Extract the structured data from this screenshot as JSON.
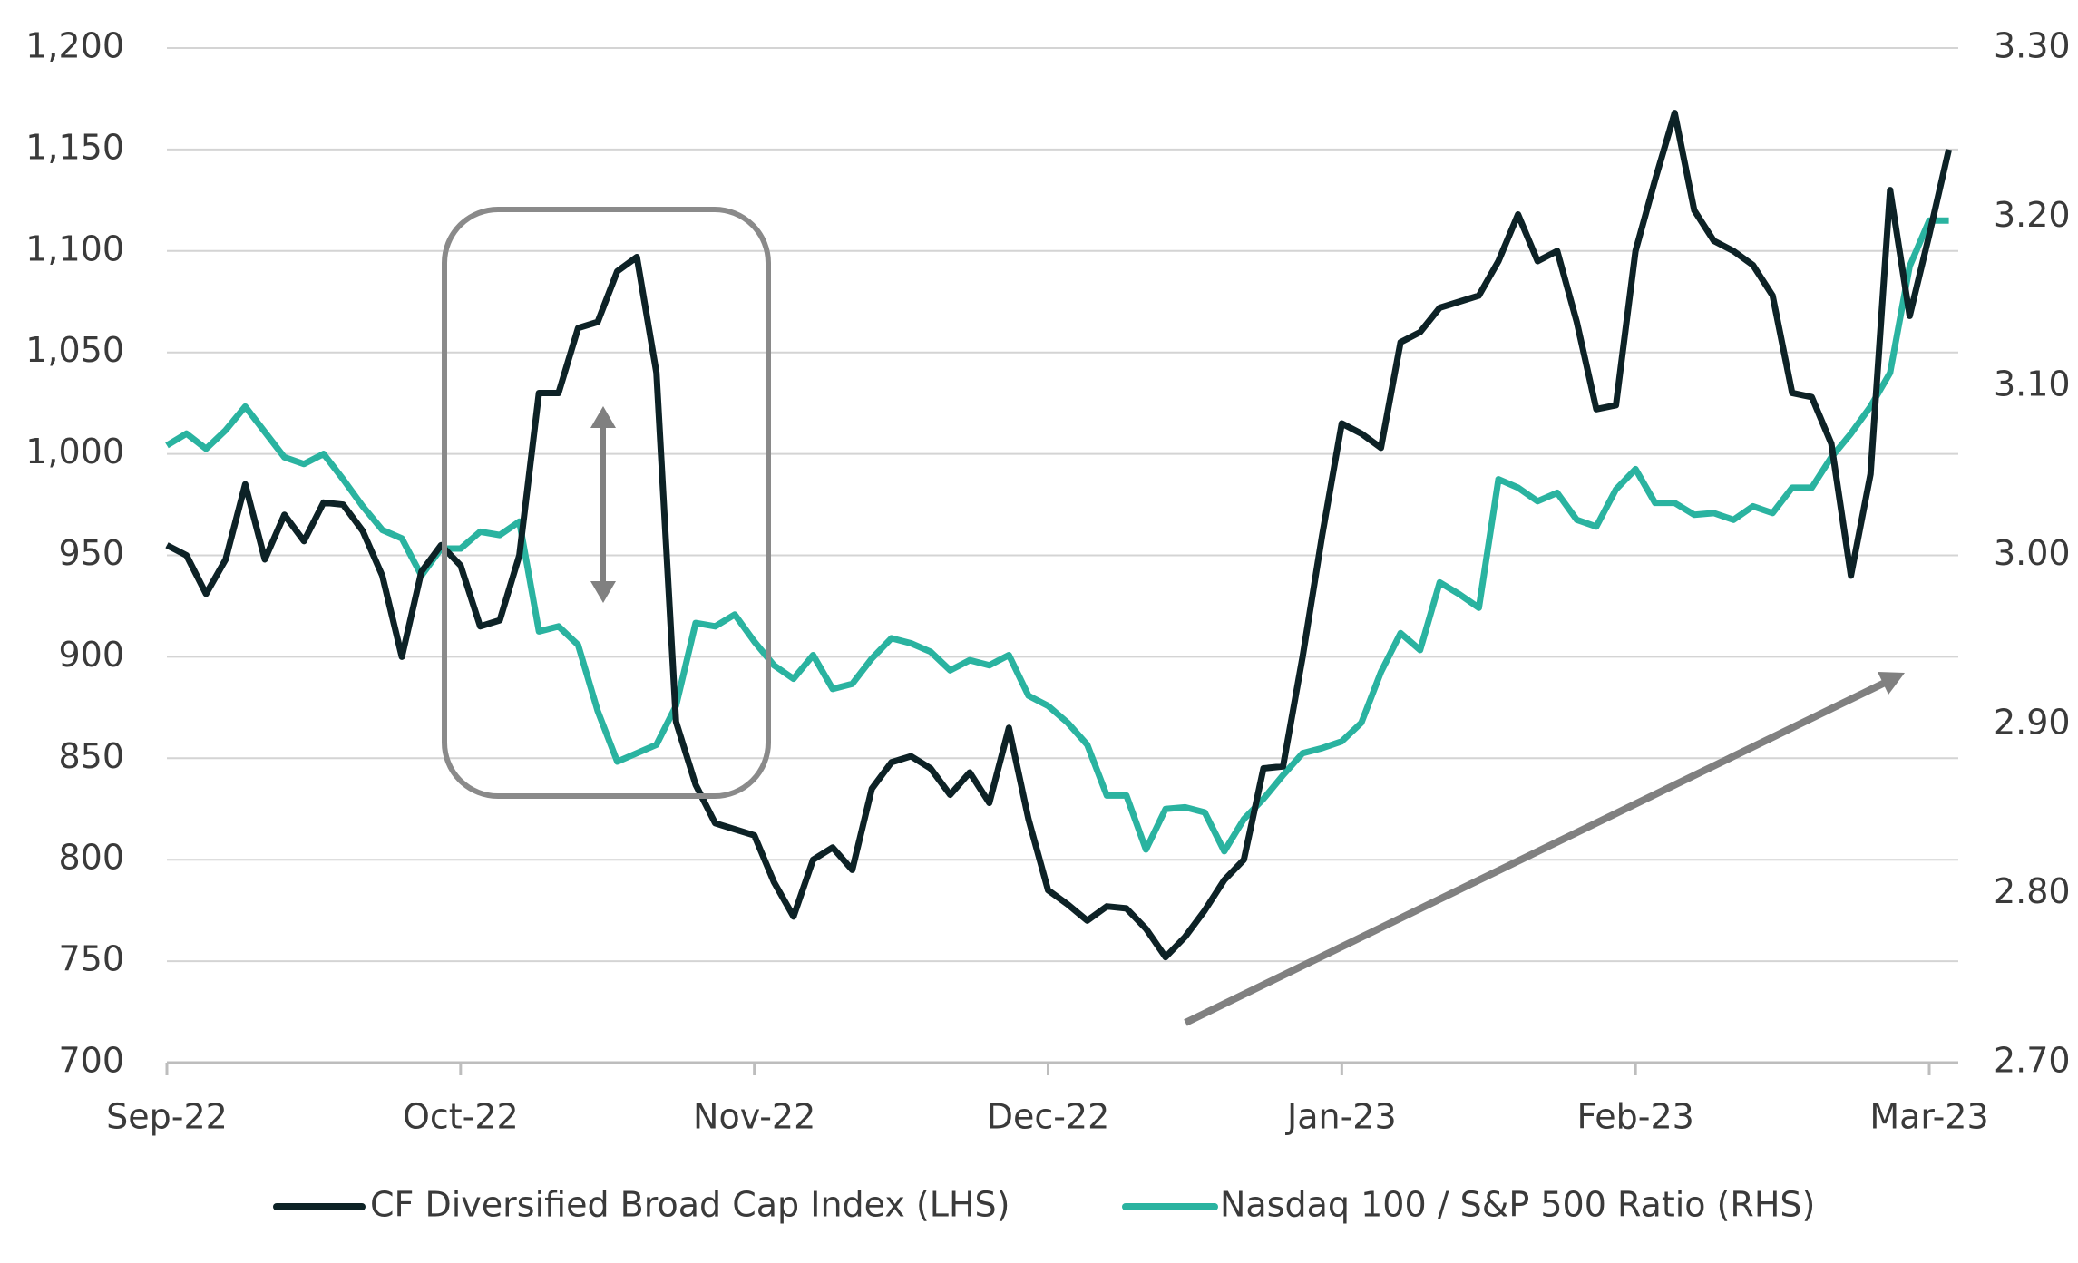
{
  "chart_data": {
    "type": "line",
    "categories": [
      "Sep-22",
      null,
      null,
      null,
      null,
      null,
      null,
      null,
      null,
      null,
      null,
      null,
      null,
      null,
      null,
      "Oct-22",
      null,
      null,
      null,
      null,
      null,
      null,
      null,
      null,
      null,
      null,
      null,
      null,
      null,
      null,
      "Nov-22",
      null,
      null,
      null,
      null,
      null,
      null,
      null,
      null,
      null,
      null,
      null,
      null,
      null,
      null,
      "Dec-22",
      null,
      null,
      null,
      null,
      null,
      null,
      null,
      null,
      null,
      null,
      null,
      null,
      null,
      null,
      "Jan-23",
      null,
      null,
      null,
      null,
      null,
      null,
      null,
      null,
      null,
      null,
      null,
      null,
      null,
      null,
      "Feb-23",
      null,
      null,
      null,
      null,
      null,
      null,
      null,
      null,
      null,
      null,
      null,
      null,
      null,
      null,
      "Mar-23",
      null
    ],
    "series": [
      {
        "name": "CF Diversified Broad Cap Index (LHS)",
        "color": "#0d2226",
        "axis": "y",
        "values": [
          955,
          950,
          931,
          948,
          985,
          948,
          970,
          957,
          976,
          975,
          962,
          940,
          900,
          942,
          955,
          945,
          915,
          918,
          950,
          1030,
          1030,
          1062,
          1065,
          1090,
          1097,
          1040,
          868,
          837,
          818,
          815,
          812,
          789,
          772,
          800,
          806,
          795,
          835,
          848,
          851,
          845,
          832,
          843,
          828,
          865,
          820,
          785,
          778,
          770,
          777,
          776,
          766,
          752,
          762,
          775,
          790,
          800,
          845,
          846,
          900,
          960,
          1015,
          1010,
          1003,
          1055,
          1060,
          1072,
          1075,
          1078,
          1095,
          1118,
          1095,
          1100,
          1065,
          1022,
          1024,
          1100,
          1135,
          1168,
          1120,
          1105,
          1100,
          1093,
          1078,
          1030,
          1028,
          1005,
          940,
          990,
          1130,
          1068,
          1108,
          1150
        ]
      },
      {
        "name": "Nasdaq 100 / S&P 500 Ratio (RHS)",
        "color": "#2ab3a0",
        "axis": "y2",
        "values": [
          3.065,
          3.072,
          3.063,
          3.074,
          3.088,
          3.073,
          3.058,
          3.054,
          3.06,
          3.045,
          3.029,
          3.015,
          3.01,
          2.988,
          3.004,
          3.004,
          3.014,
          3.012,
          3.02,
          2.955,
          2.958,
          2.947,
          2.908,
          2.878,
          2.883,
          2.888,
          2.911,
          2.96,
          2.958,
          2.965,
          2.949,
          2.935,
          2.927,
          2.941,
          2.921,
          2.924,
          2.939,
          2.951,
          2.948,
          2.943,
          2.932,
          2.938,
          2.935,
          2.941,
          2.917,
          2.911,
          2.901,
          2.888,
          2.858,
          2.858,
          2.826,
          2.85,
          2.851,
          2.848,
          2.825,
          2.844,
          2.856,
          2.87,
          2.883,
          2.886,
          2.89,
          2.901,
          2.931,
          2.954,
          2.944,
          2.984,
          2.977,
          2.969,
          3.045,
          3.04,
          3.032,
          3.037,
          3.021,
          3.017,
          3.039,
          3.051,
          3.031,
          3.031,
          3.024,
          3.025,
          3.021,
          3.029,
          3.025,
          3.04,
          3.04,
          3.058,
          3.072,
          3.088,
          3.108,
          3.171,
          3.198,
          3.198
        ]
      }
    ],
    "ylim": [
      700,
      1200
    ],
    "yticks": [
      700,
      750,
      800,
      850,
      900,
      950,
      {
        "value": 1000,
        "label": "1,000"
      },
      {
        "value": 1050,
        "label": "1,050"
      },
      {
        "value": 1100,
        "label": "1,100"
      },
      {
        "value": 1150,
        "label": "1,150"
      },
      {
        "value": 1200,
        "label": "1,200"
      }
    ],
    "y2lim": [
      2.7,
      3.3
    ],
    "y2ticks": [
      {
        "value": 2.7,
        "label": "2.70"
      },
      {
        "value": 2.8,
        "label": "2.80"
      },
      {
        "value": 2.9,
        "label": "2.90"
      },
      {
        "value": 3.0,
        "label": "3.00"
      },
      {
        "value": 3.1,
        "label": "3.10"
      },
      {
        "value": 3.2,
        "label": "3.20"
      },
      {
        "value": 3.3,
        "label": "3.30"
      }
    ],
    "grid": true,
    "legend": "bottom"
  }
}
